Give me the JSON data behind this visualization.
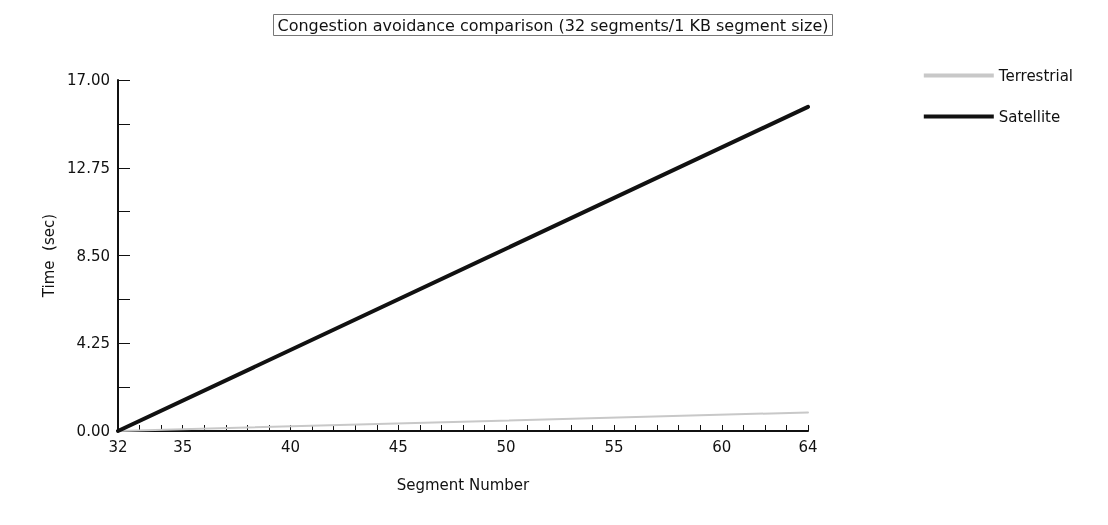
{
  "chart_data": {
    "type": "line",
    "title": "Congestion avoidance comparison (32 segments/1 KB segment size)",
    "xlabel": "Segment Number",
    "ylabel": "Time  (sec)",
    "series": [
      {
        "name": "Terrestrial",
        "color": "#c8c8c8",
        "values": [
          0,
          0.9
        ]
      },
      {
        "name": "Satellite",
        "color": "#111111",
        "values": [
          0,
          15.7
        ]
      }
    ],
    "x": [
      32,
      64
    ],
    "xlim": [
      32,
      64
    ],
    "xticks": [
      32,
      {
        "value": 33,
        "label": null
      },
      {
        "value": 34,
        "label": null
      },
      35,
      {
        "value": 36,
        "label": null
      },
      {
        "value": 37,
        "label": null
      },
      {
        "value": 38,
        "label": null
      },
      {
        "value": 39,
        "label": null
      },
      40,
      {
        "value": 41,
        "label": null
      },
      {
        "value": 42,
        "label": null
      },
      {
        "value": 43,
        "label": null
      },
      {
        "value": 44,
        "label": null
      },
      45,
      {
        "value": 46,
        "label": null
      },
      {
        "value": 47,
        "label": null
      },
      {
        "value": 48,
        "label": null
      },
      {
        "value": 49,
        "label": null
      },
      50,
      {
        "value": 51,
        "label": null
      },
      {
        "value": 52,
        "label": null
      },
      {
        "value": 53,
        "label": null
      },
      {
        "value": 54,
        "label": null
      },
      55,
      {
        "value": 56,
        "label": null
      },
      {
        "value": 57,
        "label": null
      },
      {
        "value": 58,
        "label": null
      },
      {
        "value": 59,
        "label": null
      },
      60,
      {
        "value": 61,
        "label": null
      },
      {
        "value": 62,
        "label": null
      },
      {
        "value": 63,
        "label": null
      },
      64
    ],
    "ylim": [
      0,
      17
    ],
    "yticks": [
      {
        "value": 0,
        "label": "0.00"
      },
      {
        "value": 2.125,
        "label": null
      },
      {
        "value": 4.25,
        "label": "4.25"
      },
      {
        "value": 6.375,
        "label": null
      },
      {
        "value": 8.5,
        "label": "8.50"
      },
      {
        "value": 10.625,
        "label": null
      },
      {
        "value": 12.75,
        "label": "12.75"
      },
      {
        "value": 14.875,
        "label": null
      },
      {
        "value": 17,
        "label": "17.00"
      }
    ],
    "grid": false,
    "legend": "top right",
    "marker": "none",
    "line_style": "solid"
  }
}
